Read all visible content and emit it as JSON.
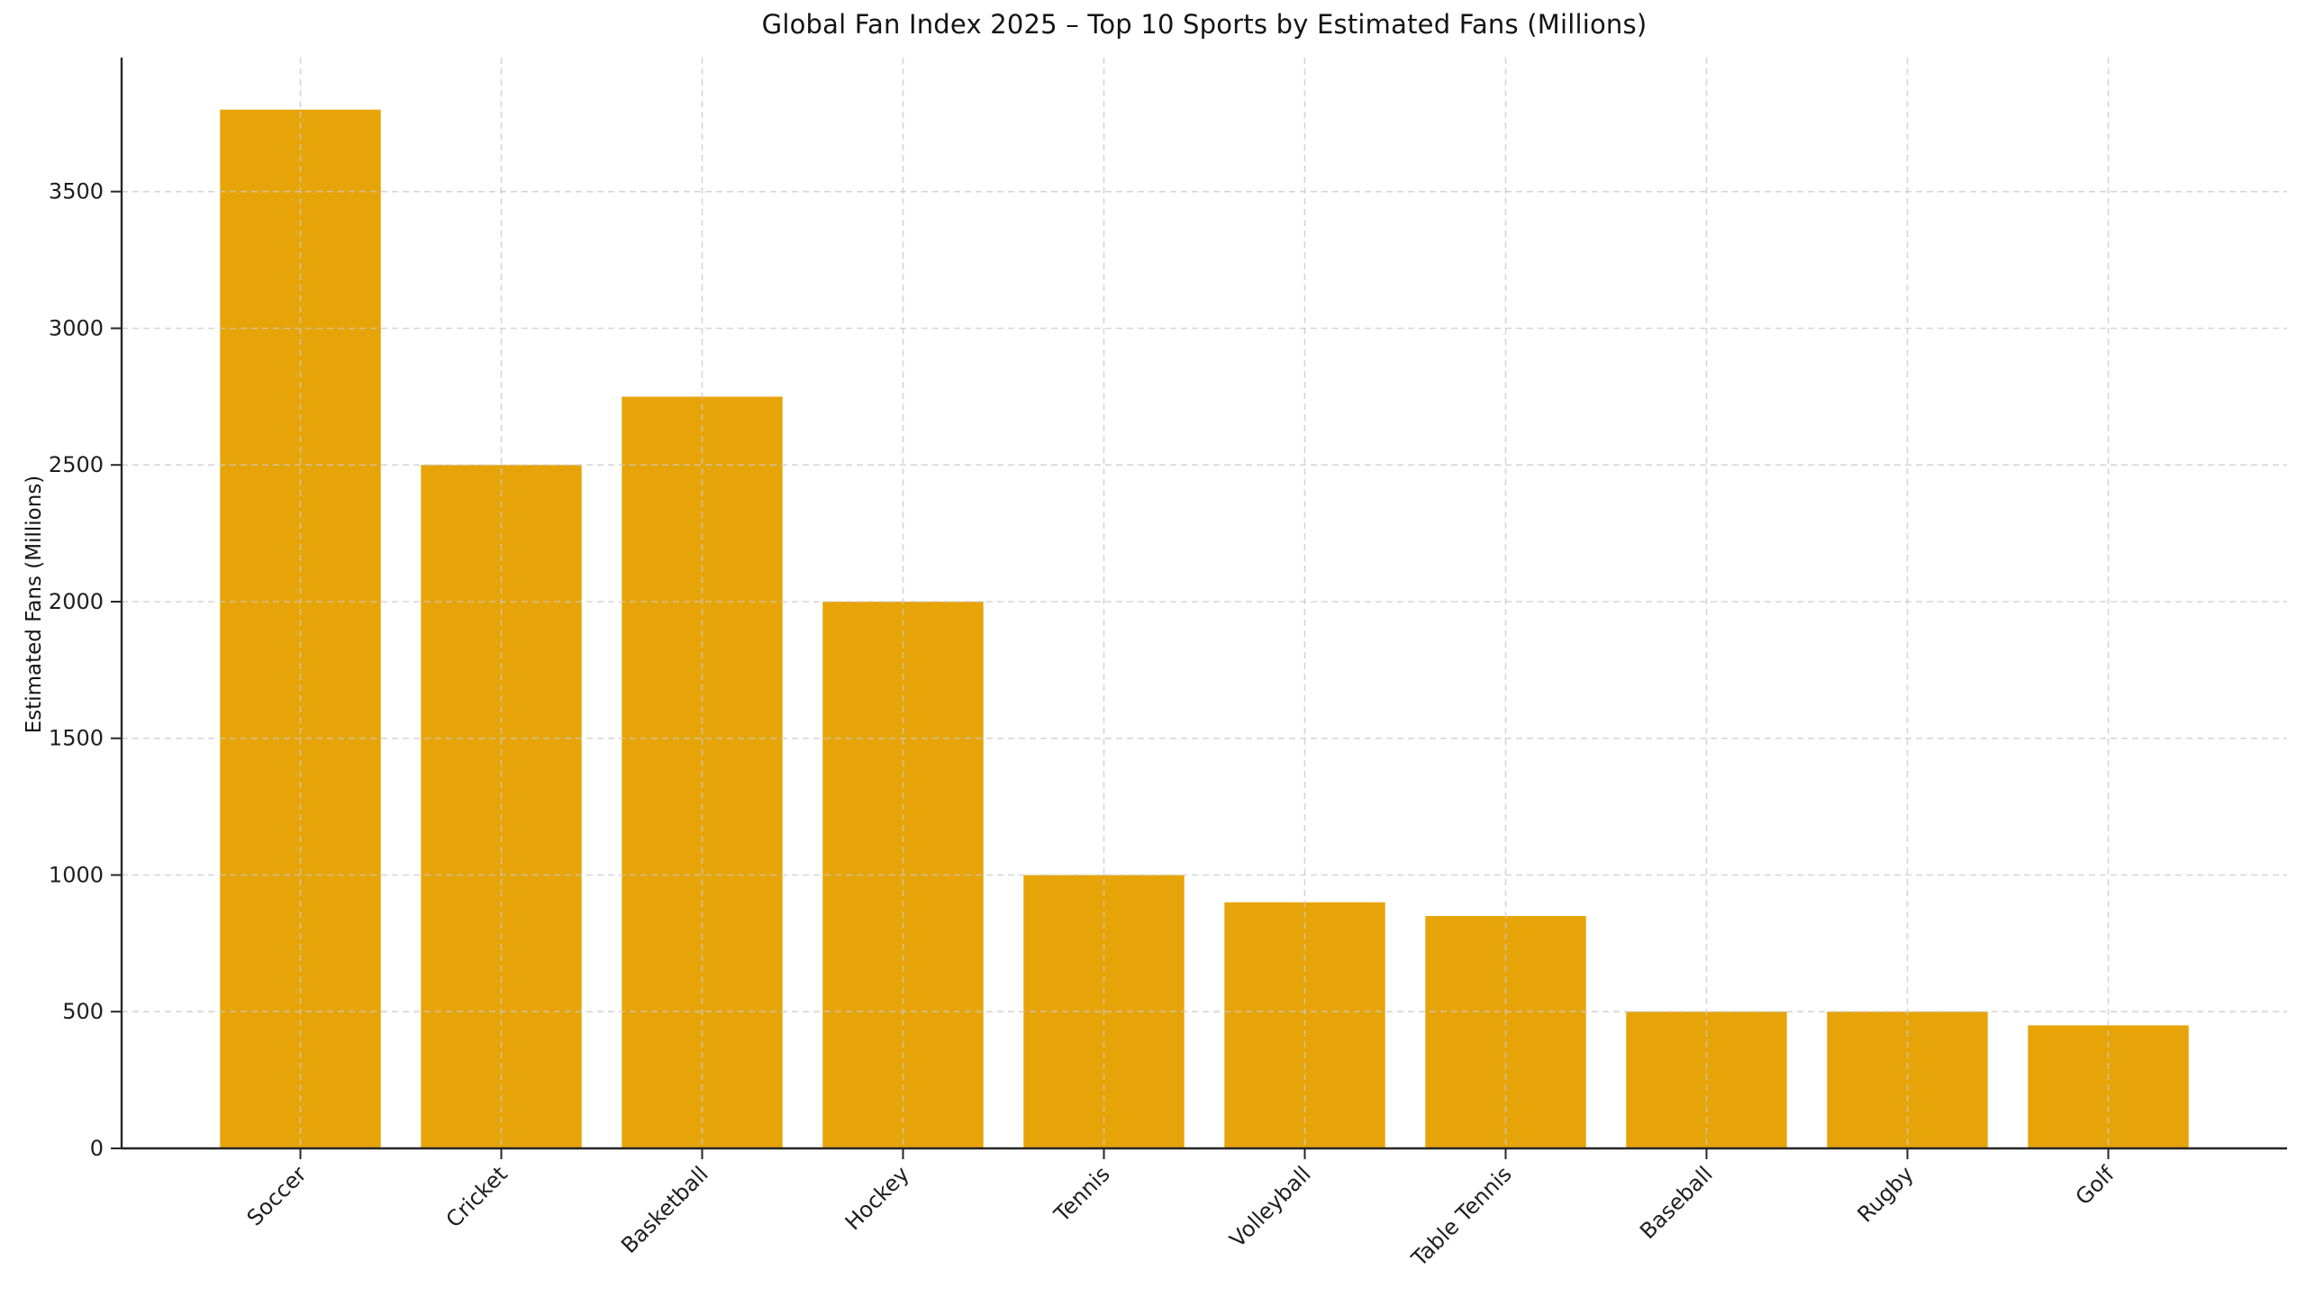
{
  "figure": {
    "background": "#ffffff"
  },
  "chart_data": {
    "type": "bar",
    "title": "Global Fan Index 2025 – Top 10 Sports by Estimated Fans (Millions)",
    "xlabel": "",
    "ylabel": "Estimated Fans (Millions)",
    "categories": [
      "Soccer",
      "Cricket",
      "Basketball",
      "Hockey",
      "Tennis",
      "Volleyball",
      "Table Tennis",
      "Baseball",
      "Rugby",
      "Golf"
    ],
    "values": [
      3800,
      2500,
      2750,
      2000,
      1000,
      900,
      850,
      500,
      500,
      450
    ],
    "yticks": [
      0,
      500,
      1000,
      1500,
      2000,
      2500,
      3000,
      3500
    ],
    "ylim": [
      0,
      3990
    ],
    "grid": true,
    "grid_style": "dashed",
    "legend": "none",
    "colors": {
      "bar": "#E7A408",
      "grid": "#c8c8c8",
      "axis": "#262626",
      "tick_text": "#1f1f1f",
      "title_text": "#141414"
    },
    "tick_label_rotation_x": 45
  }
}
